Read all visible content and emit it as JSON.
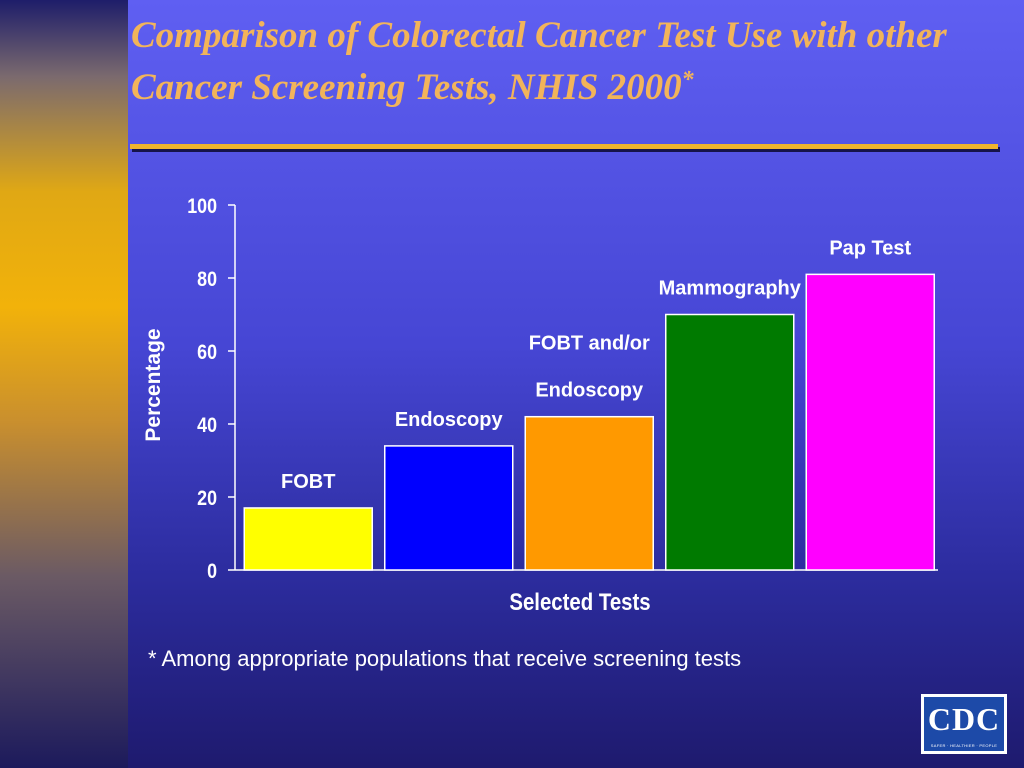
{
  "slide": {
    "title": "Comparison of Colorectal Cancer Test Use with other Cancer Screening Tests, NHIS 2000",
    "title_mark": "*",
    "footnote": "* Among appropriate populations that receive screening tests",
    "logo_text": "CDC",
    "logo_tagline": "SAFER · HEALTHIER · PEOPLE",
    "colors": {
      "title": "#f2b45a",
      "rule": "#f0b42e",
      "text": "#ffffff"
    }
  },
  "chart_data": {
    "type": "bar",
    "title": "",
    "xlabel": "Selected Tests",
    "ylabel": "Percentage",
    "ylim": [
      0,
      100
    ],
    "yticks": [
      0,
      20,
      40,
      60,
      80,
      100
    ],
    "grid": false,
    "legend": "none",
    "categories": [
      "FOBT",
      "Endoscopy",
      "FOBT and/or Endoscopy",
      "Mammography",
      "Pap Test"
    ],
    "label_lines": [
      [
        "FOBT"
      ],
      [
        "Endoscopy"
      ],
      [
        "FOBT and/or",
        "Endoscopy"
      ],
      [
        "Mammography"
      ],
      [
        "Pap Test"
      ]
    ],
    "values": [
      17,
      34,
      42,
      70,
      81
    ],
    "colors": [
      "#ffff00",
      "#0000ff",
      "#ff9900",
      "#007a00",
      "#ff00ff"
    ]
  }
}
